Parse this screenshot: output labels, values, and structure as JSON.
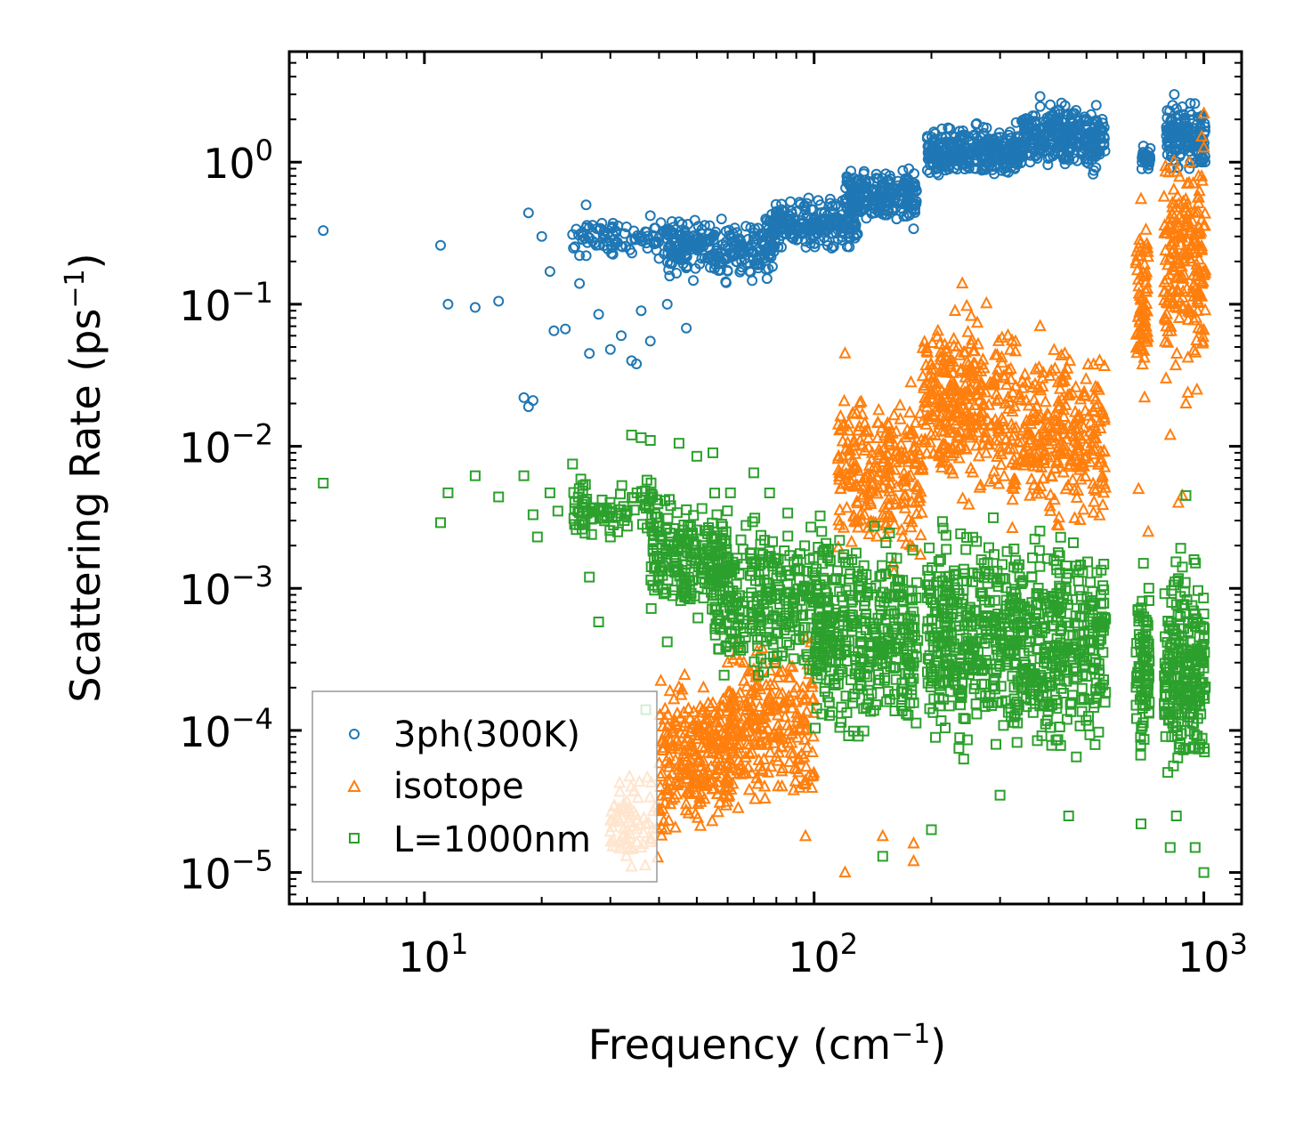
{
  "chart_data": {
    "type": "scatter",
    "title": "",
    "xlabel": "Frequency (cm",
    "xlabel_sup": "−1",
    "xlabel_end": ")",
    "ylabel": "Scattering Rate (ps",
    "ylabel_sup": "−1",
    "ylabel_end": ")",
    "xscale": "log",
    "yscale": "log",
    "xlim": [
      4.5,
      1250
    ],
    "ylim": [
      6e-06,
      6
    ],
    "x_ticks": [
      {
        "value": 10,
        "base": "10",
        "exp": "1"
      },
      {
        "value": 100,
        "base": "10",
        "exp": "2"
      },
      {
        "value": 1000,
        "base": "10",
        "exp": "3"
      }
    ],
    "y_ticks": [
      {
        "value": 1,
        "base": "10",
        "exp": "0"
      },
      {
        "value": 0.1,
        "base": "10",
        "exp": "−1"
      },
      {
        "value": 0.01,
        "base": "10",
        "exp": "−2"
      },
      {
        "value": 0.001,
        "base": "10",
        "exp": "−3"
      },
      {
        "value": 0.0001,
        "base": "10",
        "exp": "−4"
      },
      {
        "value": 1e-05,
        "base": "10",
        "exp": "−5"
      }
    ],
    "legend_position": "bottom-left",
    "series": [
      {
        "name": "3ph(300K)",
        "marker": "circle",
        "color": "#1f77b4",
        "points": [
          [
            5.5,
            0.33
          ],
          [
            11,
            0.26
          ],
          [
            11.5,
            0.1
          ],
          [
            13.5,
            0.095
          ],
          [
            15.5,
            0.105
          ],
          [
            18,
            0.022
          ],
          [
            18.5,
            0.019
          ],
          [
            19,
            0.021
          ],
          [
            18.5,
            0.44
          ],
          [
            20,
            0.3
          ],
          [
            21,
            0.17
          ],
          [
            21.5,
            0.065
          ],
          [
            23,
            0.067
          ],
          [
            24,
            0.31
          ],
          [
            25,
            0.14
          ],
          [
            26.5,
            0.045
          ],
          [
            28,
            0.085
          ],
          [
            30,
            0.048
          ],
          [
            32,
            0.06
          ],
          [
            34,
            0.04
          ],
          [
            35,
            0.038
          ],
          [
            36,
            0.09
          ],
          [
            38,
            0.055
          ],
          [
            40,
            0.21
          ],
          [
            42,
            0.1
          ],
          [
            47,
            0.068
          ],
          [
            26,
            0.5
          ],
          [
            27,
            0.36
          ],
          [
            25,
            0.22
          ],
          [
            29,
            0.3
          ],
          [
            31,
            0.27
          ],
          [
            33,
            0.35
          ],
          [
            36,
            0.28
          ],
          [
            38,
            0.42
          ],
          [
            45,
            0.38
          ],
          [
            50,
            0.3
          ],
          [
            55,
            0.2
          ],
          [
            60,
            0.25
          ],
          [
            70,
            0.3
          ],
          [
            80,
            0.35
          ],
          [
            90,
            0.45
          ],
          [
            100,
            0.4
          ],
          [
            110,
            0.55
          ],
          [
            130,
            0.6
          ],
          [
            150,
            0.7
          ],
          [
            175,
            0.9
          ],
          [
            180,
            0.34
          ],
          [
            200,
            1.1
          ],
          [
            230,
            1.2
          ],
          [
            260,
            0.9
          ],
          [
            300,
            1.5
          ],
          [
            330,
            1.9
          ],
          [
            380,
            2.9
          ],
          [
            400,
            2.0
          ],
          [
            430,
            1.4
          ],
          [
            500,
            1.0
          ],
          [
            540,
            1.2
          ],
          [
            700,
            1.3
          ],
          [
            720,
            0.9
          ],
          [
            840,
            3.0
          ],
          [
            870,
            1.5
          ],
          [
            920,
            2.0
          ],
          [
            990,
            1.0
          ]
        ],
        "bands": [
          {
            "x_min": 24,
            "x_max": 55,
            "y_min": 0.2,
            "y_max": 0.42,
            "n": 130
          },
          {
            "x_min": 42,
            "x_max": 80,
            "y_min": 0.13,
            "y_max": 0.45,
            "n": 220
          },
          {
            "x_min": 75,
            "x_max": 130,
            "y_min": 0.22,
            "y_max": 0.6,
            "n": 220
          },
          {
            "x_min": 120,
            "x_max": 185,
            "y_min": 0.32,
            "y_max": 1.0,
            "n": 230
          },
          {
            "x_min": 195,
            "x_max": 340,
            "y_min": 0.7,
            "y_max": 2.0,
            "n": 320
          },
          {
            "x_min": 340,
            "x_max": 560,
            "y_min": 0.75,
            "y_max": 3.0,
            "n": 300
          },
          {
            "x_min": 690,
            "x_max": 730,
            "y_min": 0.85,
            "y_max": 1.3,
            "n": 40
          },
          {
            "x_min": 800,
            "x_max": 1010,
            "y_min": 0.75,
            "y_max": 3.0,
            "n": 160
          }
        ]
      },
      {
        "name": "isotope",
        "marker": "triangle",
        "color": "#ff7f0e",
        "points": [
          [
            34,
            1.1e-05
          ],
          [
            36,
            1.5e-05
          ],
          [
            40,
            2.8e-05
          ],
          [
            45,
            8e-05
          ],
          [
            52,
            0.0002
          ],
          [
            60,
            0.0003
          ],
          [
            66,
            0.0003
          ],
          [
            70,
            0.0006
          ],
          [
            95,
            1.8e-05
          ],
          [
            120,
            1e-05
          ],
          [
            150,
            1.8e-05
          ],
          [
            180,
            1.6e-05
          ],
          [
            180,
            1.2e-05
          ],
          [
            120,
            0.045
          ],
          [
            240,
            0.14
          ],
          [
            380,
            0.07
          ],
          [
            440,
            0.045
          ],
          [
            540,
            0.04
          ],
          [
            690,
            0.55
          ],
          [
            680,
            0.005
          ],
          [
            720,
            0.0025
          ],
          [
            800,
            0.03
          ],
          [
            820,
            0.012
          ],
          [
            860,
            0.004
          ],
          [
            880,
            0.0045
          ],
          [
            960,
            0.025
          ],
          [
            1000,
            2.2
          ],
          [
            900,
            0.02
          ]
        ],
        "bands": [
          {
            "x_min": 30,
            "x_max": 42,
            "y_min": 1e-05,
            "y_max": 6e-05,
            "n": 80
          },
          {
            "x_min": 40,
            "x_max": 62,
            "y_min": 1.5e-05,
            "y_max": 0.0003,
            "n": 260
          },
          {
            "x_min": 60,
            "x_max": 100,
            "y_min": 2e-05,
            "y_max": 0.0006,
            "n": 260
          },
          {
            "x_min": 115,
            "x_max": 190,
            "y_min": 0.001,
            "y_max": 0.04,
            "n": 260
          },
          {
            "x_min": 190,
            "x_max": 320,
            "y_min": 0.003,
            "y_max": 0.13,
            "n": 320
          },
          {
            "x_min": 320,
            "x_max": 560,
            "y_min": 0.002,
            "y_max": 0.07,
            "n": 300
          },
          {
            "x_min": 670,
            "x_max": 720,
            "y_min": 0.02,
            "y_max": 0.5,
            "n": 80
          },
          {
            "x_min": 790,
            "x_max": 1010,
            "y_min": 0.02,
            "y_max": 2.0,
            "n": 220
          }
        ]
      },
      {
        "name": "L=1000nm",
        "marker": "square",
        "color": "#2ca02c",
        "points": [
          [
            5.5,
            0.0055
          ],
          [
            11,
            0.0029
          ],
          [
            11.5,
            0.0047
          ],
          [
            13.5,
            0.0062
          ],
          [
            15.5,
            0.0044
          ],
          [
            18,
            0.0062
          ],
          [
            19,
            0.0033
          ],
          [
            19.5,
            0.0023
          ],
          [
            21,
            0.0047
          ],
          [
            22,
            0.0035
          ],
          [
            24,
            0.0075
          ],
          [
            26,
            0.0035
          ],
          [
            26.5,
            0.0012
          ],
          [
            28,
            0.00058
          ],
          [
            30,
            0.0023
          ],
          [
            34,
            0.012
          ],
          [
            36,
            0.0115
          ],
          [
            38,
            0.011
          ],
          [
            40,
            0.0025
          ],
          [
            42,
            0.00042
          ],
          [
            45,
            0.0105
          ],
          [
            50,
            0.0085
          ],
          [
            55,
            0.009
          ],
          [
            70,
            0.0065
          ],
          [
            37,
            0.00014
          ],
          [
            150,
            1.3e-05
          ],
          [
            200,
            2e-05
          ],
          [
            300,
            3.5e-05
          ],
          [
            450,
            2.5e-05
          ],
          [
            690,
            2.2e-05
          ],
          [
            820,
            1.5e-05
          ],
          [
            850,
            2.5e-05
          ],
          [
            950,
            1.5e-05
          ],
          [
            1000,
            1e-05
          ],
          [
            700,
            0.0015
          ],
          [
            900,
            0.0045
          ]
        ],
        "bands": [
          {
            "x_min": 24,
            "x_max": 40,
            "y_min": 0.002,
            "y_max": 0.0065,
            "n": 90
          },
          {
            "x_min": 38,
            "x_max": 60,
            "y_min": 0.0005,
            "y_max": 0.006,
            "n": 220
          },
          {
            "x_min": 55,
            "x_max": 110,
            "y_min": 0.00015,
            "y_max": 0.005,
            "n": 320
          },
          {
            "x_min": 100,
            "x_max": 185,
            "y_min": 6e-05,
            "y_max": 0.004,
            "n": 360
          },
          {
            "x_min": 195,
            "x_max": 330,
            "y_min": 5e-05,
            "y_max": 0.004,
            "n": 380
          },
          {
            "x_min": 330,
            "x_max": 560,
            "y_min": 4e-05,
            "y_max": 0.004,
            "n": 360
          },
          {
            "x_min": 670,
            "x_max": 725,
            "y_min": 6e-05,
            "y_max": 0.0015,
            "n": 90
          },
          {
            "x_min": 790,
            "x_max": 1010,
            "y_min": 3e-05,
            "y_max": 0.0025,
            "n": 240
          }
        ]
      }
    ]
  }
}
